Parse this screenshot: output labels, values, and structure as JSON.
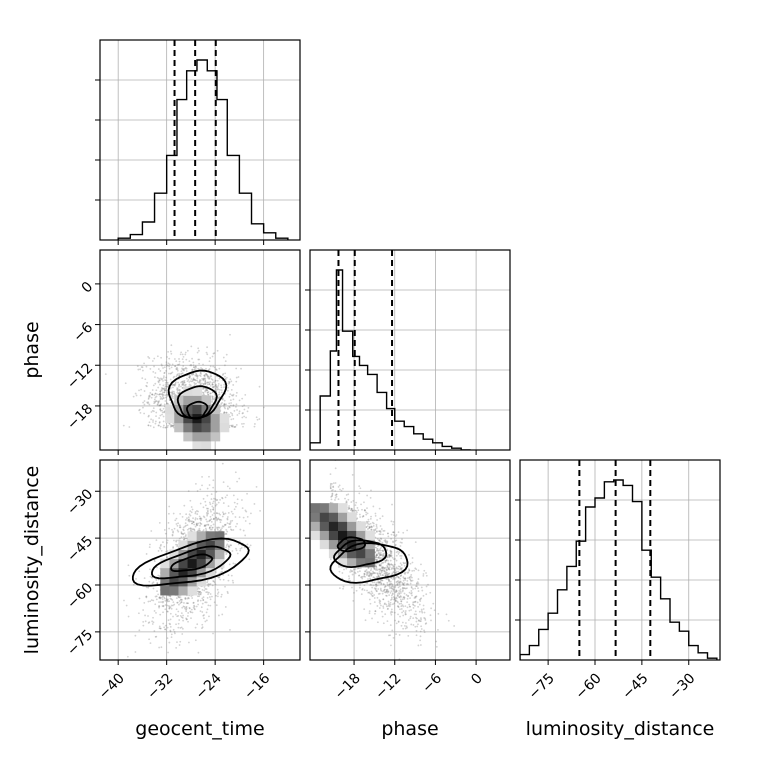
{
  "chart_data": {
    "type": "corner",
    "parameters": [
      "geocent_time",
      "phase",
      "luminosity_distance"
    ],
    "axes": {
      "geocent_time": {
        "range": [
          -43,
          -10
        ],
        "ticks": [
          -40,
          -32,
          -24,
          -16
        ],
        "tick_labels": [
          "−40",
          "−32",
          "−24",
          "−16"
        ]
      },
      "phase": {
        "range": [
          -24.5,
          5
        ],
        "ticks": [
          -18,
          -12,
          -6,
          0
        ],
        "tick_labels": [
          "−18",
          "−12",
          "−6",
          "0"
        ]
      },
      "luminosity_distance": {
        "range": [
          -84,
          -20
        ],
        "ticks": [
          -75,
          -60,
          -45,
          -30
        ],
        "tick_labels": [
          "−75",
          "−60",
          "−45",
          "−30"
        ]
      }
    },
    "histograms": [
      {
        "parameter": "geocent_time",
        "bin_edges": [
          -40,
          -38,
          -36,
          -34,
          -32,
          -30.3,
          -28.7,
          -27,
          -25.3,
          -23.7,
          -22,
          -20,
          -18,
          -16,
          -14,
          -12
        ],
        "counts": [
          1,
          3,
          10,
          26,
          47,
          78,
          94,
          100,
          94,
          78,
          47,
          26,
          9,
          4,
          1
        ],
        "quantiles": [
          -30.7,
          -27.3,
          -23.9
        ]
      },
      {
        "parameter": "phase",
        "bin_edges": [
          -24.5,
          -23,
          -21.5,
          -20.6,
          -19.7,
          -18.2,
          -17.2,
          -16,
          -14.6,
          -13.2,
          -12,
          -10.6,
          -9.2,
          -7.8,
          -6.4,
          -5,
          -3.6,
          -2.2,
          -0.8
        ],
        "counts": [
          4,
          30,
          55,
          100,
          66,
          52,
          47,
          42,
          32,
          23,
          16,
          13,
          9,
          6,
          4,
          2,
          1,
          0
        ],
        "quantiles": [
          -20.3,
          -17.9,
          -12.4
        ]
      },
      {
        "parameter": "luminosity_distance",
        "bin_edges": [
          -84,
          -81,
          -78,
          -75,
          -72,
          -69,
          -66,
          -63,
          -60,
          -57,
          -54,
          -51,
          -48,
          -45,
          -42,
          -39,
          -36,
          -33,
          -30,
          -27,
          -24,
          -21
        ],
        "counts": [
          3,
          8,
          17,
          26,
          39,
          52,
          66,
          85,
          90,
          99,
          100,
          97,
          88,
          61,
          46,
          34,
          21,
          16,
          8,
          4,
          1
        ],
        "quantiles": [
          -65,
          -53.4,
          -42.3
        ]
      }
    ],
    "pairs": [
      {
        "x": "geocent_time",
        "y": "phase",
        "contour_levels": [
          "inner",
          "middle",
          "outer"
        ],
        "density_peak": {
          "x": -27,
          "y": -19.8
        },
        "correlation": "weak negative"
      },
      {
        "x": "geocent_time",
        "y": "luminosity_distance",
        "contour_levels": [
          "inner",
          "middle",
          "outer"
        ],
        "density_peak": {
          "x": -27.8,
          "y": -53
        },
        "correlation": "positive"
      },
      {
        "x": "phase",
        "y": "luminosity_distance",
        "contour_levels": [
          "inner",
          "middle",
          "outer"
        ],
        "density_peak": {
          "x": -19.7,
          "y": -44
        },
        "correlation": "negative"
      }
    ],
    "grid": true,
    "quantile_line_style": "dashed",
    "colors": {
      "line": "#000000",
      "grid": "#b0b0b0",
      "scatter": "#808080",
      "background": "#ffffff"
    }
  }
}
